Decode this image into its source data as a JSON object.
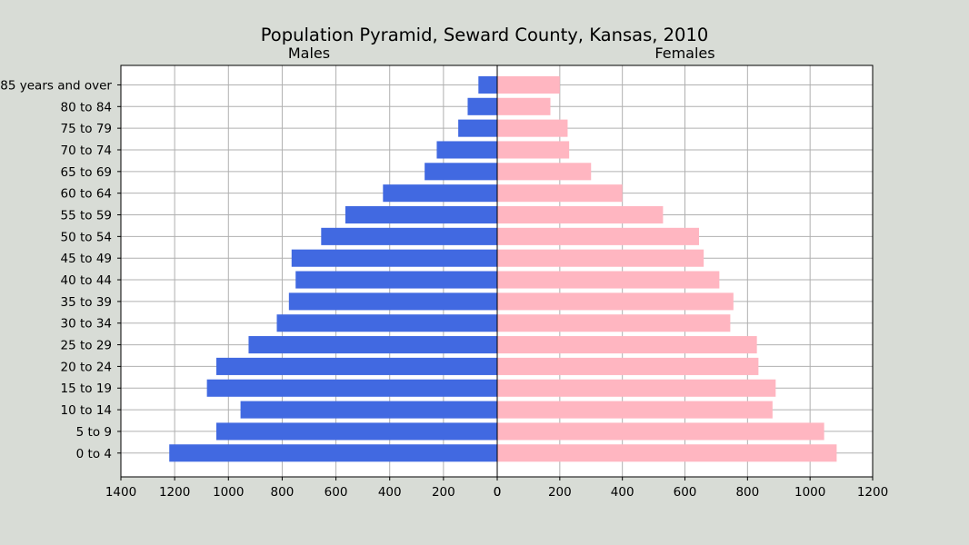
{
  "chart_data": {
    "type": "bar",
    "title": "Population Pyramid, Seward County, Kansas, 2010",
    "categories": [
      "0 to 4",
      "5 to 9",
      "10 to 14",
      "15 to 19",
      "20 to 24",
      "25 to 29",
      "30 to 34",
      "35 to 39",
      "40 to 44",
      "45 to 49",
      "50 to 54",
      "55 to 59",
      "60 to 64",
      "65 to 69",
      "70 to 74",
      "75 to 79",
      "80 to 84",
      "85 years and over"
    ],
    "panels": [
      {
        "name": "Males",
        "xlim": [
          1400,
          0
        ],
        "ticks": [
          "1400",
          "1200",
          "1000",
          "800",
          "600",
          "400",
          "200",
          "0"
        ],
        "tick_values": [
          1400,
          1200,
          1000,
          800,
          600,
          400,
          200,
          0
        ],
        "color": "#4169e1",
        "values": [
          1220,
          1045,
          955,
          1080,
          1045,
          925,
          820,
          775,
          750,
          765,
          655,
          565,
          425,
          270,
          225,
          145,
          110,
          70
        ]
      },
      {
        "name": "Females",
        "xlim": [
          0,
          1200
        ],
        "ticks": [
          "0",
          "200",
          "400",
          "600",
          "800",
          "1000",
          "1200"
        ],
        "tick_values": [
          0,
          200,
          400,
          600,
          800,
          1000,
          1200
        ],
        "color": "#ffb6c1",
        "values": [
          1085,
          1045,
          880,
          890,
          835,
          830,
          745,
          755,
          710,
          660,
          645,
          530,
          400,
          300,
          230,
          225,
          170,
          200
        ]
      }
    ],
    "grid": true
  }
}
